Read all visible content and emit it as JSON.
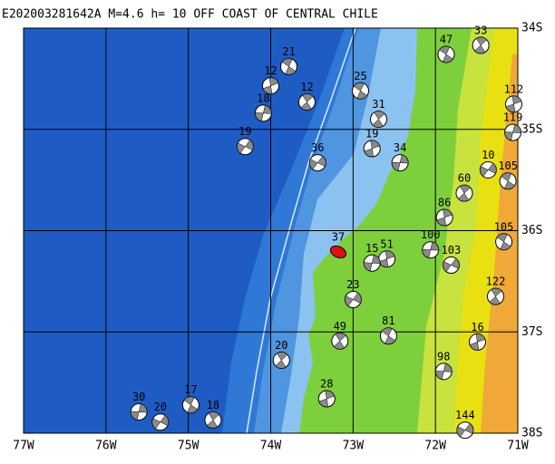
{
  "map": {
    "title": "E202003281642A M=4.6 h= 10 OFF COAST OF CENTRAL CHILE",
    "xlim": [
      -77,
      -71
    ],
    "ylim": [
      -38,
      -34
    ],
    "xticks": [
      {
        "value": -77,
        "label": "77W"
      },
      {
        "value": -76,
        "label": "76W"
      },
      {
        "value": -75,
        "label": "75W"
      },
      {
        "value": -74,
        "label": "74W"
      },
      {
        "value": -73,
        "label": "73W"
      },
      {
        "value": -72,
        "label": "72W"
      },
      {
        "value": -71,
        "label": "71W"
      }
    ],
    "yticks": [
      {
        "value": -34,
        "label": "34S"
      },
      {
        "value": -35,
        "label": "35S"
      },
      {
        "value": -36,
        "label": "36S"
      },
      {
        "value": -37,
        "label": "37S"
      },
      {
        "value": -38,
        "label": "38S"
      }
    ],
    "events": [
      {
        "lon": -73.78,
        "lat": -34.38,
        "depth": "21"
      },
      {
        "lon": -73.56,
        "lat": -34.73,
        "depth": "12"
      },
      {
        "lon": -74.0,
        "lat": -34.57,
        "depth": "12"
      },
      {
        "lon": -74.09,
        "lat": -34.84,
        "depth": "18"
      },
      {
        "lon": -74.31,
        "lat": -35.17,
        "depth": "19"
      },
      {
        "lon": -72.91,
        "lat": -34.62,
        "depth": "25"
      },
      {
        "lon": -72.69,
        "lat": -34.9,
        "depth": "31"
      },
      {
        "lon": -72.77,
        "lat": -35.19,
        "depth": "19"
      },
      {
        "lon": -72.43,
        "lat": -35.33,
        "depth": "34"
      },
      {
        "lon": -73.43,
        "lat": -35.33,
        "depth": "36"
      },
      {
        "lon": -71.87,
        "lat": -34.26,
        "depth": "47"
      },
      {
        "lon": -71.45,
        "lat": -34.17,
        "depth": "33"
      },
      {
        "lon": -71.05,
        "lat": -34.75,
        "depth": "112"
      },
      {
        "lon": -71.06,
        "lat": -35.03,
        "depth": "119"
      },
      {
        "lon": -71.36,
        "lat": -35.4,
        "depth": "10"
      },
      {
        "lon": -71.12,
        "lat": -35.51,
        "depth": "105"
      },
      {
        "lon": -71.65,
        "lat": -35.63,
        "depth": "60"
      },
      {
        "lon": -71.89,
        "lat": -35.87,
        "depth": "86"
      },
      {
        "lon": -72.06,
        "lat": -36.19,
        "depth": "100"
      },
      {
        "lon": -71.81,
        "lat": -36.34,
        "depth": "103"
      },
      {
        "lon": -71.17,
        "lat": -36.11,
        "depth": "105"
      },
      {
        "lon": -71.27,
        "lat": -36.65,
        "depth": "122"
      },
      {
        "lon": -71.49,
        "lat": -37.1,
        "depth": "16"
      },
      {
        "lon": -71.9,
        "lat": -37.39,
        "depth": "98"
      },
      {
        "lon": -71.64,
        "lat": -37.97,
        "depth": "144"
      },
      {
        "lon": -72.57,
        "lat": -37.04,
        "depth": "81"
      },
      {
        "lon": -73.16,
        "lat": -37.09,
        "depth": "49"
      },
      {
        "lon": -72.59,
        "lat": -36.28,
        "depth": "51"
      },
      {
        "lon": -72.77,
        "lat": -36.32,
        "depth": "15"
      },
      {
        "lon": -73.0,
        "lat": -36.68,
        "depth": "23"
      },
      {
        "lon": -73.18,
        "lat": -36.21,
        "depth": "37",
        "color": "#e01010"
      },
      {
        "lon": -73.87,
        "lat": -37.28,
        "depth": "20"
      },
      {
        "lon": -73.32,
        "lat": -37.66,
        "depth": "28"
      },
      {
        "lon": -75.6,
        "lat": -37.79,
        "depth": "30"
      },
      {
        "lon": -75.34,
        "lat": -37.89,
        "depth": "20"
      },
      {
        "lon": -74.97,
        "lat": -37.72,
        "depth": "17"
      },
      {
        "lon": -74.7,
        "lat": -37.87,
        "depth": "18"
      }
    ]
  }
}
